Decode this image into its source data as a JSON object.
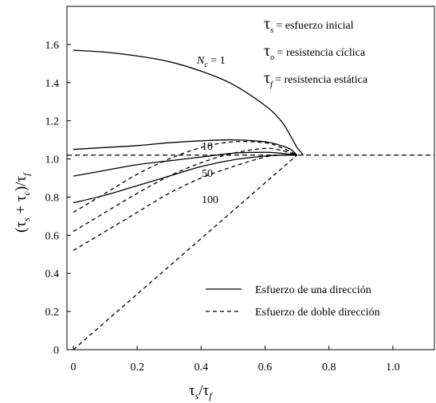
{
  "chart_data": {
    "type": "line",
    "title": "",
    "xlabel_parts": {
      "base1": "τ",
      "sub1": "s",
      "slash": "/",
      "base2": "τ",
      "sub2": "f"
    },
    "ylabel_parts": {
      "open": "(",
      "base1": "τ",
      "sub1": "s",
      "plus": " + ",
      "base2": "τ",
      "sub2": "c",
      "close": ")",
      "slash": "/",
      "base3": "τ",
      "sub3": "f"
    },
    "xlim": [
      -0.02,
      1.13
    ],
    "ylim": [
      0,
      1.8
    ],
    "x_ticks": [
      0,
      0.2,
      0.4,
      0.6,
      0.8,
      1.0
    ],
    "x_tick_labels": [
      "0",
      "0.2",
      "0.4",
      "0.6",
      "0.8",
      "1.0"
    ],
    "y_ticks": [
      0,
      0.2,
      0.4,
      0.6,
      0.8,
      1.0,
      1.2,
      1.4,
      1.6
    ],
    "y_tick_labels": [
      "0",
      "0.2",
      "0.4",
      "0.6",
      "0.8",
      "1.0",
      "1.2",
      "1.4",
      "1.6"
    ],
    "reference_line": {
      "y": 1.02
    },
    "definitions": [
      {
        "base": "τ",
        "sub": "s",
        "text": "= esfuerzo inicial"
      },
      {
        "base": "τ",
        "sub": "o",
        "text": "= resistencia cíclica"
      },
      {
        "base": "τ",
        "sub": "f",
        "text": "= resistencia estática"
      }
    ],
    "annotations": {
      "nc_prefix": "N",
      "nc_sub": "c",
      "nc_suffix": " = 1",
      "n10": "10",
      "n50": "50",
      "n100": "100"
    },
    "legend": {
      "position": "lower-right",
      "items": [
        {
          "label": "Esfuerzo de una dirección",
          "style": "solid"
        },
        {
          "label": "Esfuerzo de doble dirección",
          "style": "dashed"
        }
      ]
    },
    "series": [
      {
        "id": "nc1-one",
        "style": "solid",
        "x": [
          0,
          0.1,
          0.2,
          0.3,
          0.4,
          0.5,
          0.6,
          0.65,
          0.68,
          0.7,
          0.71,
          0.72
        ],
        "y": [
          1.57,
          1.56,
          1.54,
          1.51,
          1.46,
          1.39,
          1.28,
          1.2,
          1.12,
          1.06,
          1.04,
          1.02
        ]
      },
      {
        "id": "n10-one",
        "style": "solid",
        "x": [
          0,
          0.1,
          0.2,
          0.3,
          0.4,
          0.5,
          0.6,
          0.65,
          0.68,
          0.7
        ],
        "y": [
          1.05,
          1.06,
          1.07,
          1.085,
          1.095,
          1.1,
          1.09,
          1.07,
          1.05,
          1.02
        ]
      },
      {
        "id": "n50-one",
        "style": "solid",
        "x": [
          0,
          0.1,
          0.2,
          0.3,
          0.4,
          0.5,
          0.6,
          0.65,
          0.7
        ],
        "y": [
          0.91,
          0.94,
          0.97,
          0.99,
          1.01,
          1.03,
          1.035,
          1.03,
          1.02
        ]
      },
      {
        "id": "n100-one",
        "style": "solid",
        "x": [
          0,
          0.1,
          0.2,
          0.3,
          0.4,
          0.5,
          0.6,
          0.65,
          0.7
        ],
        "y": [
          0.77,
          0.81,
          0.86,
          0.91,
          0.96,
          0.995,
          1.015,
          1.02,
          1.02
        ]
      },
      {
        "id": "n10-two",
        "style": "dashed",
        "x": [
          0,
          0.1,
          0.2,
          0.3,
          0.4,
          0.5,
          0.6,
          0.65,
          0.7
        ],
        "y": [
          0.72,
          0.82,
          0.92,
          1.0,
          1.06,
          1.09,
          1.085,
          1.06,
          1.02
        ]
      },
      {
        "id": "n50-two",
        "style": "dashed",
        "x": [
          0,
          0.1,
          0.2,
          0.3,
          0.4,
          0.5,
          0.6,
          0.65,
          0.7
        ],
        "y": [
          0.62,
          0.72,
          0.82,
          0.91,
          0.98,
          1.03,
          1.055,
          1.045,
          1.02
        ]
      },
      {
        "id": "n100-two",
        "style": "dashed",
        "x": [
          0,
          0.1,
          0.2,
          0.3,
          0.4,
          0.5,
          0.6,
          0.65,
          0.7
        ],
        "y": [
          0.52,
          0.62,
          0.72,
          0.82,
          0.9,
          0.96,
          1.01,
          1.02,
          1.02
        ]
      },
      {
        "id": "origin-two",
        "style": "dashed",
        "x": [
          0,
          0.7
        ],
        "y": [
          0,
          1.02
        ]
      }
    ]
  }
}
